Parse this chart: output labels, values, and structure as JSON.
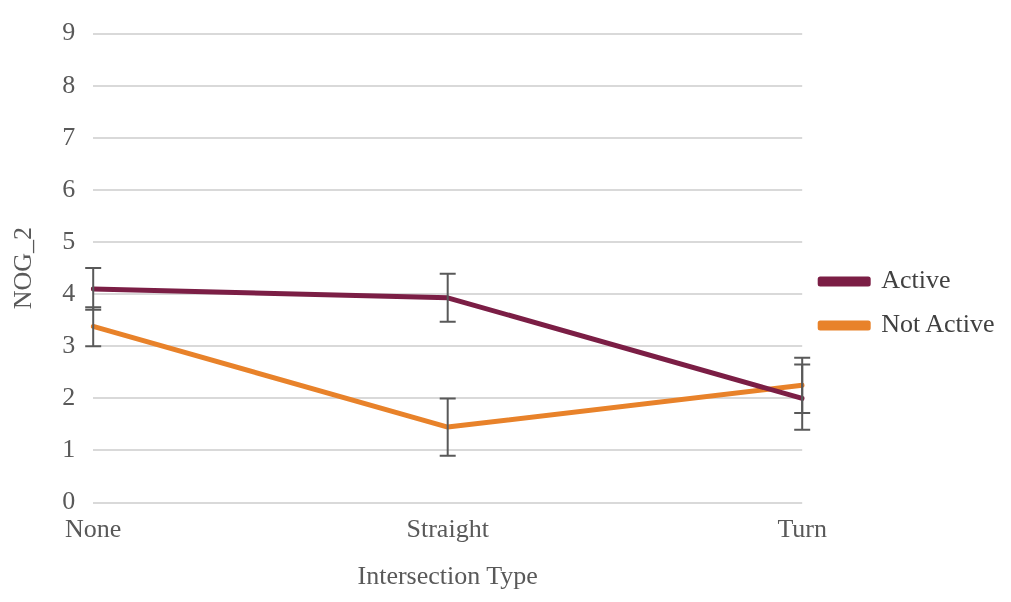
{
  "chart_data": {
    "type": "line",
    "xlabel": "Intersection Type",
    "ylabel": "NOG_2",
    "categories": [
      "None",
      "Straight",
      "Turn"
    ],
    "series": [
      {
        "name": "Active",
        "color": "#7b1e45",
        "values": [
          4.1,
          3.93,
          2.0
        ],
        "errors": [
          0.4,
          0.46,
          [
            1.4,
            2.65
          ]
        ]
      },
      {
        "name": "Not Active",
        "color": "#e8822a",
        "values": [
          3.38,
          1.45,
          2.25
        ],
        "errors": [
          [
            3.0,
            3.75
          ],
          0.55,
          [
            1.72,
            2.78
          ]
        ]
      }
    ],
    "ylim": [
      0,
      9
    ],
    "yticks": [
      0,
      1,
      2,
      3,
      4,
      5,
      6,
      7,
      8,
      9
    ],
    "grid": "y",
    "legend": "right",
    "marker": "none",
    "line_style": "solid"
  }
}
